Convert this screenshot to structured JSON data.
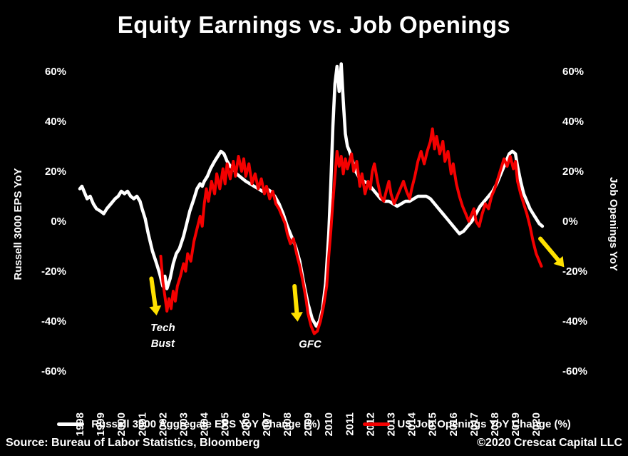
{
  "title": "Equity Earnings vs. Job Openings",
  "footer": {
    "source": "Source: Bureau of Labor Statistics, Bloomberg",
    "copyright": "©2020 Crescat Capital LLC"
  },
  "chart_data": {
    "type": "line",
    "title": "Equity Earnings vs. Job Openings",
    "left_axis_label": "Russell 3000 EPS YoY",
    "right_axis_label": "Job Openings YoY",
    "background_color": "#000000",
    "grid": "off",
    "legend_position": "bottom",
    "y_ticks": [
      60,
      40,
      20,
      0,
      -20,
      -40,
      -60
    ],
    "y_range": [
      -60,
      65
    ],
    "x_ticks": [
      1998,
      1999,
      2000,
      2001,
      2002,
      2003,
      2004,
      2005,
      2006,
      2007,
      2008,
      2009,
      2010,
      2011,
      2012,
      2013,
      2014,
      2015,
      2016,
      2017,
      2018,
      2019,
      2020
    ],
    "arrow_color": "#ffe100",
    "annotations": [
      {
        "lines": [
          "Tech",
          "Bust"
        ],
        "x": 2002.0,
        "y": -44
      },
      {
        "lines": [
          "GFC"
        ],
        "x": 2009.1,
        "y": -50.5
      }
    ],
    "arrows": [
      {
        "x": 2001.45,
        "y": -23,
        "angle": 8,
        "len": 52
      },
      {
        "x": 2008.35,
        "y": -26,
        "angle": 5,
        "len": 50
      },
      {
        "x": 2020.2,
        "y": -7,
        "angle": 40,
        "len": 52
      }
    ],
    "series": [
      {
        "name": "Russell 3000 Aggregate EPS YoY Change (%)",
        "color": "#ffffff",
        "width": 4.5,
        "points": [
          [
            1998.0,
            13
          ],
          [
            1998.1,
            14
          ],
          [
            1998.2,
            12
          ],
          [
            1998.35,
            9
          ],
          [
            1998.5,
            10
          ],
          [
            1998.65,
            7
          ],
          [
            1998.8,
            5
          ],
          [
            1999.0,
            4
          ],
          [
            1999.15,
            3
          ],
          [
            1999.3,
            5
          ],
          [
            1999.5,
            7
          ],
          [
            1999.7,
            9
          ],
          [
            1999.85,
            10
          ],
          [
            2000.0,
            12
          ],
          [
            2000.15,
            11
          ],
          [
            2000.3,
            12
          ],
          [
            2000.45,
            10
          ],
          [
            2000.6,
            9
          ],
          [
            2000.75,
            10
          ],
          [
            2000.9,
            8
          ],
          [
            2001.0,
            5
          ],
          [
            2001.15,
            1
          ],
          [
            2001.3,
            -5
          ],
          [
            2001.5,
            -12
          ],
          [
            2001.7,
            -17
          ],
          [
            2001.85,
            -21
          ],
          [
            2002.0,
            -26
          ],
          [
            2002.1,
            -22
          ],
          [
            2002.2,
            -27
          ],
          [
            2002.35,
            -23
          ],
          [
            2002.5,
            -17
          ],
          [
            2002.65,
            -13
          ],
          [
            2002.8,
            -11
          ],
          [
            2003.0,
            -6
          ],
          [
            2003.15,
            -1
          ],
          [
            2003.3,
            4
          ],
          [
            2003.5,
            9
          ],
          [
            2003.65,
            13
          ],
          [
            2003.8,
            15
          ],
          [
            2003.9,
            14
          ],
          [
            2004.0,
            16
          ],
          [
            2004.15,
            18
          ],
          [
            2004.3,
            21
          ],
          [
            2004.5,
            24
          ],
          [
            2004.65,
            26
          ],
          [
            2004.8,
            28
          ],
          [
            2004.95,
            27
          ],
          [
            2005.1,
            24
          ],
          [
            2005.25,
            22
          ],
          [
            2005.4,
            21
          ],
          [
            2005.55,
            19
          ],
          [
            2005.7,
            18
          ],
          [
            2005.85,
            17
          ],
          [
            2006.0,
            16
          ],
          [
            2006.2,
            15
          ],
          [
            2006.4,
            14
          ],
          [
            2006.6,
            13
          ],
          [
            2006.8,
            12
          ],
          [
            2007.0,
            13
          ],
          [
            2007.2,
            12
          ],
          [
            2007.4,
            10
          ],
          [
            2007.6,
            7
          ],
          [
            2007.8,
            3
          ],
          [
            2008.0,
            -2
          ],
          [
            2008.2,
            -6
          ],
          [
            2008.4,
            -10
          ],
          [
            2008.6,
            -16
          ],
          [
            2008.8,
            -25
          ],
          [
            2009.0,
            -33
          ],
          [
            2009.2,
            -39
          ],
          [
            2009.4,
            -42
          ],
          [
            2009.55,
            -40
          ],
          [
            2009.7,
            -35
          ],
          [
            2009.85,
            -25
          ],
          [
            2010.0,
            -5
          ],
          [
            2010.1,
            15
          ],
          [
            2010.2,
            38
          ],
          [
            2010.3,
            55
          ],
          [
            2010.4,
            62
          ],
          [
            2010.5,
            52
          ],
          [
            2010.6,
            63
          ],
          [
            2010.7,
            48
          ],
          [
            2010.8,
            35
          ],
          [
            2010.9,
            30
          ],
          [
            2011.0,
            28
          ],
          [
            2011.15,
            24
          ],
          [
            2011.3,
            20
          ],
          [
            2011.5,
            17
          ],
          [
            2011.7,
            16
          ],
          [
            2011.9,
            15
          ],
          [
            2012.1,
            13
          ],
          [
            2012.3,
            11
          ],
          [
            2012.5,
            9
          ],
          [
            2012.7,
            8
          ],
          [
            2012.9,
            8
          ],
          [
            2013.1,
            7
          ],
          [
            2013.3,
            6
          ],
          [
            2013.5,
            7
          ],
          [
            2013.7,
            8
          ],
          [
            2013.9,
            8
          ],
          [
            2014.1,
            9
          ],
          [
            2014.3,
            10
          ],
          [
            2014.5,
            10
          ],
          [
            2014.7,
            10
          ],
          [
            2014.9,
            9
          ],
          [
            2015.1,
            7
          ],
          [
            2015.3,
            5
          ],
          [
            2015.5,
            3
          ],
          [
            2015.7,
            1
          ],
          [
            2015.9,
            -1
          ],
          [
            2016.1,
            -3
          ],
          [
            2016.3,
            -5
          ],
          [
            2016.5,
            -4
          ],
          [
            2016.7,
            -2
          ],
          [
            2016.9,
            0
          ],
          [
            2017.1,
            3
          ],
          [
            2017.3,
            6
          ],
          [
            2017.5,
            8
          ],
          [
            2017.7,
            10
          ],
          [
            2017.9,
            12
          ],
          [
            2018.1,
            15
          ],
          [
            2018.3,
            19
          ],
          [
            2018.5,
            23
          ],
          [
            2018.7,
            27
          ],
          [
            2018.85,
            28
          ],
          [
            2019.0,
            27
          ],
          [
            2019.1,
            22
          ],
          [
            2019.25,
            16
          ],
          [
            2019.4,
            11
          ],
          [
            2019.55,
            8
          ],
          [
            2019.7,
            5
          ],
          [
            2019.85,
            3
          ],
          [
            2020.0,
            1
          ],
          [
            2020.15,
            -1
          ],
          [
            2020.3,
            -2
          ]
        ]
      },
      {
        "name": "US Job Openings YoY Change (%)",
        "color": "#f40000",
        "width": 4,
        "points": [
          [
            2001.9,
            -14
          ],
          [
            2002.0,
            -24
          ],
          [
            2002.1,
            -30
          ],
          [
            2002.2,
            -36
          ],
          [
            2002.3,
            -31
          ],
          [
            2002.4,
            -35
          ],
          [
            2002.5,
            -28
          ],
          [
            2002.6,
            -32
          ],
          [
            2002.7,
            -26
          ],
          [
            2002.85,
            -22
          ],
          [
            2003.0,
            -17
          ],
          [
            2003.1,
            -20
          ],
          [
            2003.2,
            -13
          ],
          [
            2003.35,
            -16
          ],
          [
            2003.5,
            -8
          ],
          [
            2003.65,
            -3
          ],
          [
            2003.8,
            2
          ],
          [
            2003.9,
            -2
          ],
          [
            2004.0,
            7
          ],
          [
            2004.1,
            13
          ],
          [
            2004.2,
            8
          ],
          [
            2004.35,
            16
          ],
          [
            2004.5,
            11
          ],
          [
            2004.6,
            19
          ],
          [
            2004.75,
            13
          ],
          [
            2004.9,
            21
          ],
          [
            2005.0,
            15
          ],
          [
            2005.1,
            23
          ],
          [
            2005.25,
            17
          ],
          [
            2005.4,
            24
          ],
          [
            2005.5,
            18
          ],
          [
            2005.65,
            26
          ],
          [
            2005.8,
            20
          ],
          [
            2005.9,
            25
          ],
          [
            2006.0,
            18
          ],
          [
            2006.15,
            23
          ],
          [
            2006.3,
            15
          ],
          [
            2006.45,
            19
          ],
          [
            2006.6,
            13
          ],
          [
            2006.75,
            17
          ],
          [
            2006.9,
            11
          ],
          [
            2007.0,
            14
          ],
          [
            2007.15,
            9
          ],
          [
            2007.3,
            12
          ],
          [
            2007.45,
            7
          ],
          [
            2007.6,
            5
          ],
          [
            2007.75,
            2
          ],
          [
            2007.9,
            -1
          ],
          [
            2008.0,
            -5
          ],
          [
            2008.15,
            -9
          ],
          [
            2008.3,
            -7
          ],
          [
            2008.45,
            -13
          ],
          [
            2008.6,
            -18
          ],
          [
            2008.75,
            -24
          ],
          [
            2008.9,
            -31
          ],
          [
            2009.0,
            -37
          ],
          [
            2009.15,
            -42
          ],
          [
            2009.3,
            -45
          ],
          [
            2009.45,
            -44
          ],
          [
            2009.6,
            -40
          ],
          [
            2009.75,
            -34
          ],
          [
            2009.9,
            -26
          ],
          [
            2010.0,
            -14
          ],
          [
            2010.1,
            -4
          ],
          [
            2010.2,
            8
          ],
          [
            2010.3,
            18
          ],
          [
            2010.4,
            28
          ],
          [
            2010.5,
            22
          ],
          [
            2010.6,
            26
          ],
          [
            2010.7,
            19
          ],
          [
            2010.8,
            25
          ],
          [
            2010.9,
            21
          ],
          [
            2011.0,
            24
          ],
          [
            2011.1,
            27
          ],
          [
            2011.2,
            20
          ],
          [
            2011.35,
            24
          ],
          [
            2011.5,
            14
          ],
          [
            2011.6,
            19
          ],
          [
            2011.75,
            11
          ],
          [
            2011.9,
            16
          ],
          [
            2012.0,
            13
          ],
          [
            2012.1,
            20
          ],
          [
            2012.2,
            23
          ],
          [
            2012.35,
            16
          ],
          [
            2012.5,
            10
          ],
          [
            2012.65,
            8
          ],
          [
            2012.8,
            13
          ],
          [
            2012.9,
            16
          ],
          [
            2013.0,
            11
          ],
          [
            2013.15,
            7
          ],
          [
            2013.3,
            10
          ],
          [
            2013.45,
            13
          ],
          [
            2013.6,
            16
          ],
          [
            2013.75,
            12
          ],
          [
            2013.9,
            9
          ],
          [
            2014.0,
            13
          ],
          [
            2014.15,
            18
          ],
          [
            2014.3,
            24
          ],
          [
            2014.45,
            28
          ],
          [
            2014.6,
            23
          ],
          [
            2014.75,
            28
          ],
          [
            2014.9,
            32
          ],
          [
            2015.0,
            37
          ],
          [
            2015.1,
            29
          ],
          [
            2015.2,
            34
          ],
          [
            2015.35,
            27
          ],
          [
            2015.5,
            32
          ],
          [
            2015.6,
            24
          ],
          [
            2015.75,
            28
          ],
          [
            2015.9,
            19
          ],
          [
            2016.0,
            23
          ],
          [
            2016.15,
            15
          ],
          [
            2016.3,
            10
          ],
          [
            2016.45,
            6
          ],
          [
            2016.6,
            3
          ],
          [
            2016.75,
            0
          ],
          [
            2016.9,
            3
          ],
          [
            2017.0,
            5
          ],
          [
            2017.1,
            0
          ],
          [
            2017.25,
            -2
          ],
          [
            2017.4,
            3
          ],
          [
            2017.55,
            7
          ],
          [
            2017.7,
            5
          ],
          [
            2017.85,
            10
          ],
          [
            2018.0,
            13
          ],
          [
            2018.15,
            17
          ],
          [
            2018.3,
            21
          ],
          [
            2018.45,
            25
          ],
          [
            2018.6,
            22
          ],
          [
            2018.75,
            26
          ],
          [
            2018.9,
            21
          ],
          [
            2019.0,
            24
          ],
          [
            2019.1,
            16
          ],
          [
            2019.25,
            11
          ],
          [
            2019.4,
            7
          ],
          [
            2019.55,
            3
          ],
          [
            2019.7,
            -2
          ],
          [
            2019.85,
            -8
          ],
          [
            2020.0,
            -13
          ],
          [
            2020.15,
            -16
          ],
          [
            2020.25,
            -18
          ]
        ]
      }
    ]
  }
}
